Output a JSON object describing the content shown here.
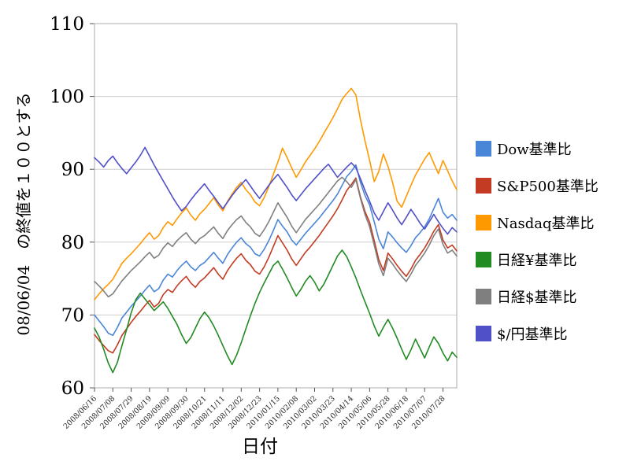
{
  "chart_data": {
    "type": "line",
    "title": "",
    "xlabel": "日付",
    "ylabel": "08/06/04　の終値を１００とする",
    "ylim": [
      60,
      110
    ],
    "yticks": [
      60,
      70,
      80,
      90,
      100,
      110
    ],
    "grid": "horizontal",
    "legend_position": "right",
    "x_tick_labels": [
      "2008/06/16",
      "2008/07/08",
      "2008/07/29",
      "2008/08/19",
      "2008/09/09",
      "2008/09/30",
      "2008/10/21",
      "2008/11/11",
      "2008/12/02",
      "2008/12/23",
      "2010/01/15",
      "2010/02/08",
      "2010/03/02",
      "2010/03/23",
      "2010/04/14",
      "2010/05/06",
      "2010/05/28",
      "2010/06/18",
      "2010/07/07",
      "2010/07/28"
    ],
    "series": [
      {
        "name": "Dow基準比",
        "color": "#4a86d8",
        "values": [
          70.0,
          69.2,
          68.4,
          67.5,
          67.2,
          68.3,
          69.6,
          70.4,
          71.2,
          71.9,
          72.6,
          73.4,
          74.1,
          73.2,
          73.6,
          74.8,
          75.6,
          75.2,
          76.1,
          76.8,
          77.4,
          76.6,
          76.1,
          76.8,
          77.2,
          77.9,
          78.6,
          77.8,
          77.1,
          78.3,
          79.2,
          80.0,
          80.6,
          79.8,
          79.3,
          78.4,
          78.1,
          79.0,
          80.2,
          81.6,
          83.1,
          82.2,
          81.4,
          80.3,
          79.6,
          80.4,
          81.2,
          81.9,
          82.6,
          83.3,
          84.1,
          84.9,
          85.7,
          86.6,
          87.8,
          89.0,
          89.7,
          90.6,
          88.2,
          86.4,
          85.1,
          82.8,
          80.4,
          79.1,
          81.4,
          80.7,
          79.9,
          79.2,
          78.6,
          79.5,
          80.6,
          81.3,
          82.1,
          83.2,
          84.6,
          86.0,
          84.1,
          83.3,
          83.8,
          83.0
        ]
      },
      {
        "name": "S&P500基準比",
        "color": "#c23b22",
        "values": [
          67.3,
          66.5,
          65.8,
          65.1,
          64.8,
          65.9,
          67.2,
          68.1,
          69.0,
          69.8,
          70.5,
          71.3,
          72.0,
          71.1,
          71.6,
          72.8,
          73.5,
          73.1,
          74.0,
          74.7,
          75.3,
          74.4,
          73.8,
          74.6,
          75.1,
          75.8,
          76.5,
          75.6,
          74.9,
          76.1,
          77.0,
          77.8,
          78.4,
          77.5,
          76.9,
          76.0,
          75.6,
          76.6,
          77.9,
          79.4,
          80.9,
          79.9,
          78.9,
          77.7,
          76.8,
          77.7,
          78.6,
          79.3,
          80.1,
          80.9,
          81.8,
          82.7,
          83.6,
          84.6,
          85.8,
          87.1,
          87.9,
          88.8,
          86.2,
          84.2,
          82.7,
          80.2,
          77.6,
          76.1,
          78.5,
          77.7,
          76.8,
          76.0,
          75.3,
          76.3,
          77.5,
          78.3,
          79.2,
          80.3,
          81.5,
          82.4,
          80.3,
          79.2,
          79.6,
          78.8
        ]
      },
      {
        "name": "Nasdaq基準比",
        "color": "#ff9900",
        "values": [
          72.1,
          72.9,
          73.6,
          74.2,
          74.9,
          76.0,
          77.1,
          77.8,
          78.4,
          79.1,
          79.8,
          80.6,
          81.3,
          80.4,
          80.9,
          82.0,
          82.8,
          82.3,
          83.2,
          84.0,
          84.7,
          83.7,
          83.0,
          83.9,
          84.5,
          85.3,
          86.1,
          85.1,
          84.3,
          85.6,
          86.6,
          87.5,
          88.2,
          87.2,
          86.5,
          85.5,
          85.0,
          86.1,
          87.6,
          89.3,
          91.0,
          92.9,
          91.6,
          90.2,
          88.9,
          89.9,
          91.0,
          91.9,
          92.8,
          93.8,
          94.9,
          96.0,
          97.1,
          98.3,
          99.6,
          100.4,
          101.1,
          100.2,
          96.8,
          93.9,
          91.2,
          88.3,
          89.7,
          92.1,
          90.4,
          88.2,
          85.6,
          84.8,
          86.3,
          87.8,
          89.2,
          90.3,
          91.4,
          92.3,
          90.8,
          89.4,
          91.2,
          89.8,
          88.4,
          87.2
        ]
      },
      {
        "name": "日経¥基準比",
        "color": "#228b22",
        "values": [
          68.2,
          67.0,
          65.3,
          63.4,
          62.1,
          63.5,
          65.8,
          68.0,
          70.3,
          72.1,
          73.0,
          72.2,
          71.4,
          70.6,
          71.2,
          71.8,
          70.9,
          69.8,
          68.7,
          67.3,
          66.1,
          66.9,
          68.2,
          69.5,
          70.4,
          69.6,
          68.5,
          67.2,
          65.8,
          64.4,
          63.2,
          64.5,
          66.2,
          68.1,
          69.9,
          71.6,
          73.1,
          74.4,
          75.6,
          76.8,
          77.4,
          76.3,
          75.1,
          73.8,
          72.6,
          73.5,
          74.6,
          75.4,
          74.5,
          73.3,
          74.2,
          75.5,
          76.8,
          78.1,
          78.9,
          78.0,
          76.6,
          75.1,
          73.4,
          71.8,
          70.2,
          68.5,
          67.1,
          68.3,
          69.4,
          68.2,
          66.8,
          65.3,
          63.9,
          65.2,
          66.7,
          65.4,
          64.1,
          65.6,
          67.0,
          66.1,
          64.8,
          63.7,
          64.9,
          64.2
        ]
      },
      {
        "name": "日経$基準比",
        "color": "#7f7f7f",
        "values": [
          74.6,
          74.0,
          73.3,
          72.5,
          72.9,
          73.8,
          74.7,
          75.4,
          76.1,
          76.7,
          77.3,
          78.0,
          78.6,
          77.8,
          78.2,
          79.2,
          79.9,
          79.4,
          80.2,
          80.8,
          81.3,
          80.4,
          79.8,
          80.5,
          80.9,
          81.5,
          82.1,
          81.2,
          80.5,
          81.6,
          82.4,
          83.1,
          83.6,
          82.7,
          82.1,
          81.2,
          80.8,
          81.7,
          82.8,
          84.1,
          85.4,
          84.4,
          83.4,
          82.2,
          81.3,
          82.2,
          83.1,
          83.8,
          84.5,
          85.2,
          86.0,
          86.8,
          87.6,
          88.4,
          88.9,
          88.3,
          87.5,
          88.6,
          86.0,
          83.8,
          82.1,
          79.6,
          77.0,
          75.4,
          77.8,
          77.0,
          76.1,
          75.3,
          74.6,
          75.6,
          76.8,
          77.6,
          78.5,
          79.6,
          80.9,
          81.8,
          79.7,
          78.5,
          78.9,
          78.1
        ]
      },
      {
        "name": "$/円基準比",
        "color": "#5050c8",
        "values": [
          91.6,
          91.0,
          90.3,
          91.2,
          91.8,
          90.9,
          90.1,
          89.4,
          90.2,
          91.0,
          91.9,
          93.0,
          91.8,
          90.6,
          89.5,
          88.4,
          87.3,
          86.2,
          85.2,
          84.3,
          84.9,
          85.8,
          86.6,
          87.3,
          88.0,
          87.1,
          86.3,
          85.4,
          84.6,
          85.5,
          86.4,
          87.2,
          87.9,
          88.6,
          87.7,
          86.8,
          86.0,
          86.9,
          87.8,
          88.6,
          89.3,
          88.4,
          87.5,
          86.5,
          85.7,
          86.5,
          87.3,
          88.0,
          88.7,
          89.4,
          90.1,
          90.7,
          89.8,
          88.9,
          89.6,
          90.3,
          90.9,
          90.2,
          88.7,
          87.1,
          85.6,
          84.0,
          83.0,
          84.2,
          85.4,
          84.4,
          83.3,
          82.4,
          83.4,
          84.5,
          83.6,
          82.6,
          81.8,
          82.8,
          83.8,
          82.8,
          81.9,
          81.1,
          82.0,
          81.4
        ]
      }
    ]
  }
}
